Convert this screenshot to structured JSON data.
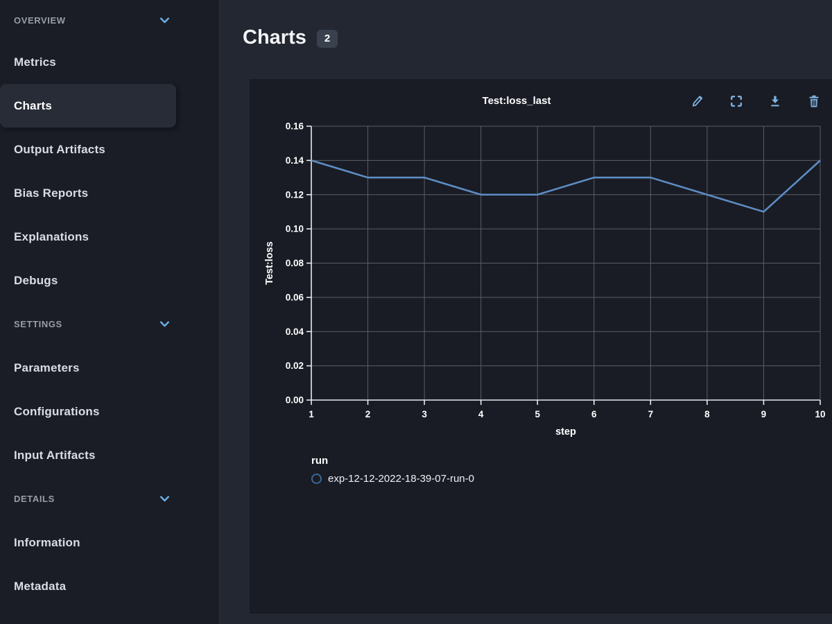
{
  "colors": {
    "accent_icon": "#7fb2e0",
    "chevron": "#6cb2e8",
    "line": "#5d8dc3",
    "grid": "#5a5e66",
    "axis": "#e9eaec",
    "legend_swatch_border": "#3c6896"
  },
  "sidebar": {
    "sections": [
      {
        "type": "header",
        "label": "OVERVIEW",
        "collapsible": true,
        "expanded": true
      },
      {
        "type": "item",
        "label": "Metrics"
      },
      {
        "type": "item",
        "label": "Charts",
        "selected": true
      },
      {
        "type": "item",
        "label": "Output Artifacts"
      },
      {
        "type": "item",
        "label": "Bias Reports"
      },
      {
        "type": "item",
        "label": "Explanations"
      },
      {
        "type": "item",
        "label": "Debugs"
      },
      {
        "type": "header",
        "label": "SETTINGS",
        "collapsible": true,
        "expanded": true
      },
      {
        "type": "item",
        "label": "Parameters"
      },
      {
        "type": "item",
        "label": "Configurations"
      },
      {
        "type": "item",
        "label": "Input Artifacts"
      },
      {
        "type": "header",
        "label": "DETAILS",
        "collapsible": true,
        "expanded": true
      },
      {
        "type": "item",
        "label": "Information"
      },
      {
        "type": "item",
        "label": "Metadata"
      }
    ]
  },
  "main": {
    "title": "Charts",
    "count_badge": "2"
  },
  "chart_card": {
    "title": "Test:loss_last",
    "toolbar": [
      "edit",
      "fullscreen",
      "download",
      "delete"
    ],
    "legend": {
      "title": "run",
      "items": [
        {
          "label": "exp-12-12-2022-18-39-07-run-0",
          "swatch_color": "#3c6896"
        }
      ]
    }
  },
  "chart_data": {
    "type": "line",
    "title": "Test:loss_last",
    "xlabel": "step",
    "ylabel": "Test:loss",
    "x": [
      1,
      2,
      3,
      4,
      5,
      6,
      7,
      8,
      9,
      10
    ],
    "series": [
      {
        "name": "exp-12-12-2022-18-39-07-run-0",
        "values": [
          0.14,
          0.13,
          0.13,
          0.12,
          0.12,
          0.13,
          0.13,
          0.12,
          0.11,
          0.14
        ]
      }
    ],
    "xlim": [
      1,
      10
    ],
    "ylim": [
      0,
      0.16
    ],
    "ytick_step": 0.02,
    "grid": true,
    "legend_position": "bottom-left",
    "line_color": "#5d8dc3"
  }
}
